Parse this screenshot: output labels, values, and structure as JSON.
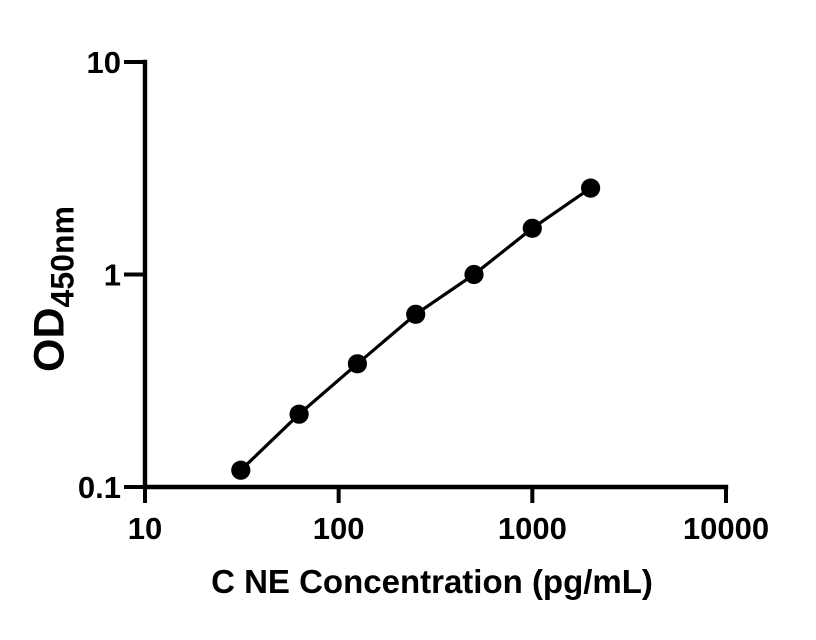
{
  "figure": {
    "background_color": "#ffffff",
    "foreground_color": "#000000"
  },
  "chart_data": {
    "type": "scatter",
    "title": "",
    "xlabel": "C NE Concentration (pg/mL)",
    "ylabel": "OD",
    "ylabel_subscript": "450nm",
    "x_scale": "log10",
    "y_scale": "log10",
    "xlim": [
      10,
      10000
    ],
    "ylim": [
      0.1,
      10
    ],
    "x_ticks": [
      10,
      100,
      1000,
      10000
    ],
    "x_tick_labels": [
      "10",
      "100",
      "1000",
      "10000"
    ],
    "y_ticks": [
      0.1,
      1,
      10
    ],
    "y_tick_labels": [
      "0.1",
      "1",
      "10"
    ],
    "grid": false,
    "legend": null,
    "marker": "filled-circle",
    "line_style": "solid",
    "series": [
      {
        "name": "standard-curve",
        "color": "#000000",
        "points": [
          {
            "x": 31.25,
            "y": 0.12
          },
          {
            "x": 62.5,
            "y": 0.22
          },
          {
            "x": 125,
            "y": 0.38
          },
          {
            "x": 250,
            "y": 0.65
          },
          {
            "x": 500,
            "y": 1.0
          },
          {
            "x": 1000,
            "y": 1.65
          },
          {
            "x": 2000,
            "y": 2.55
          }
        ]
      }
    ]
  }
}
